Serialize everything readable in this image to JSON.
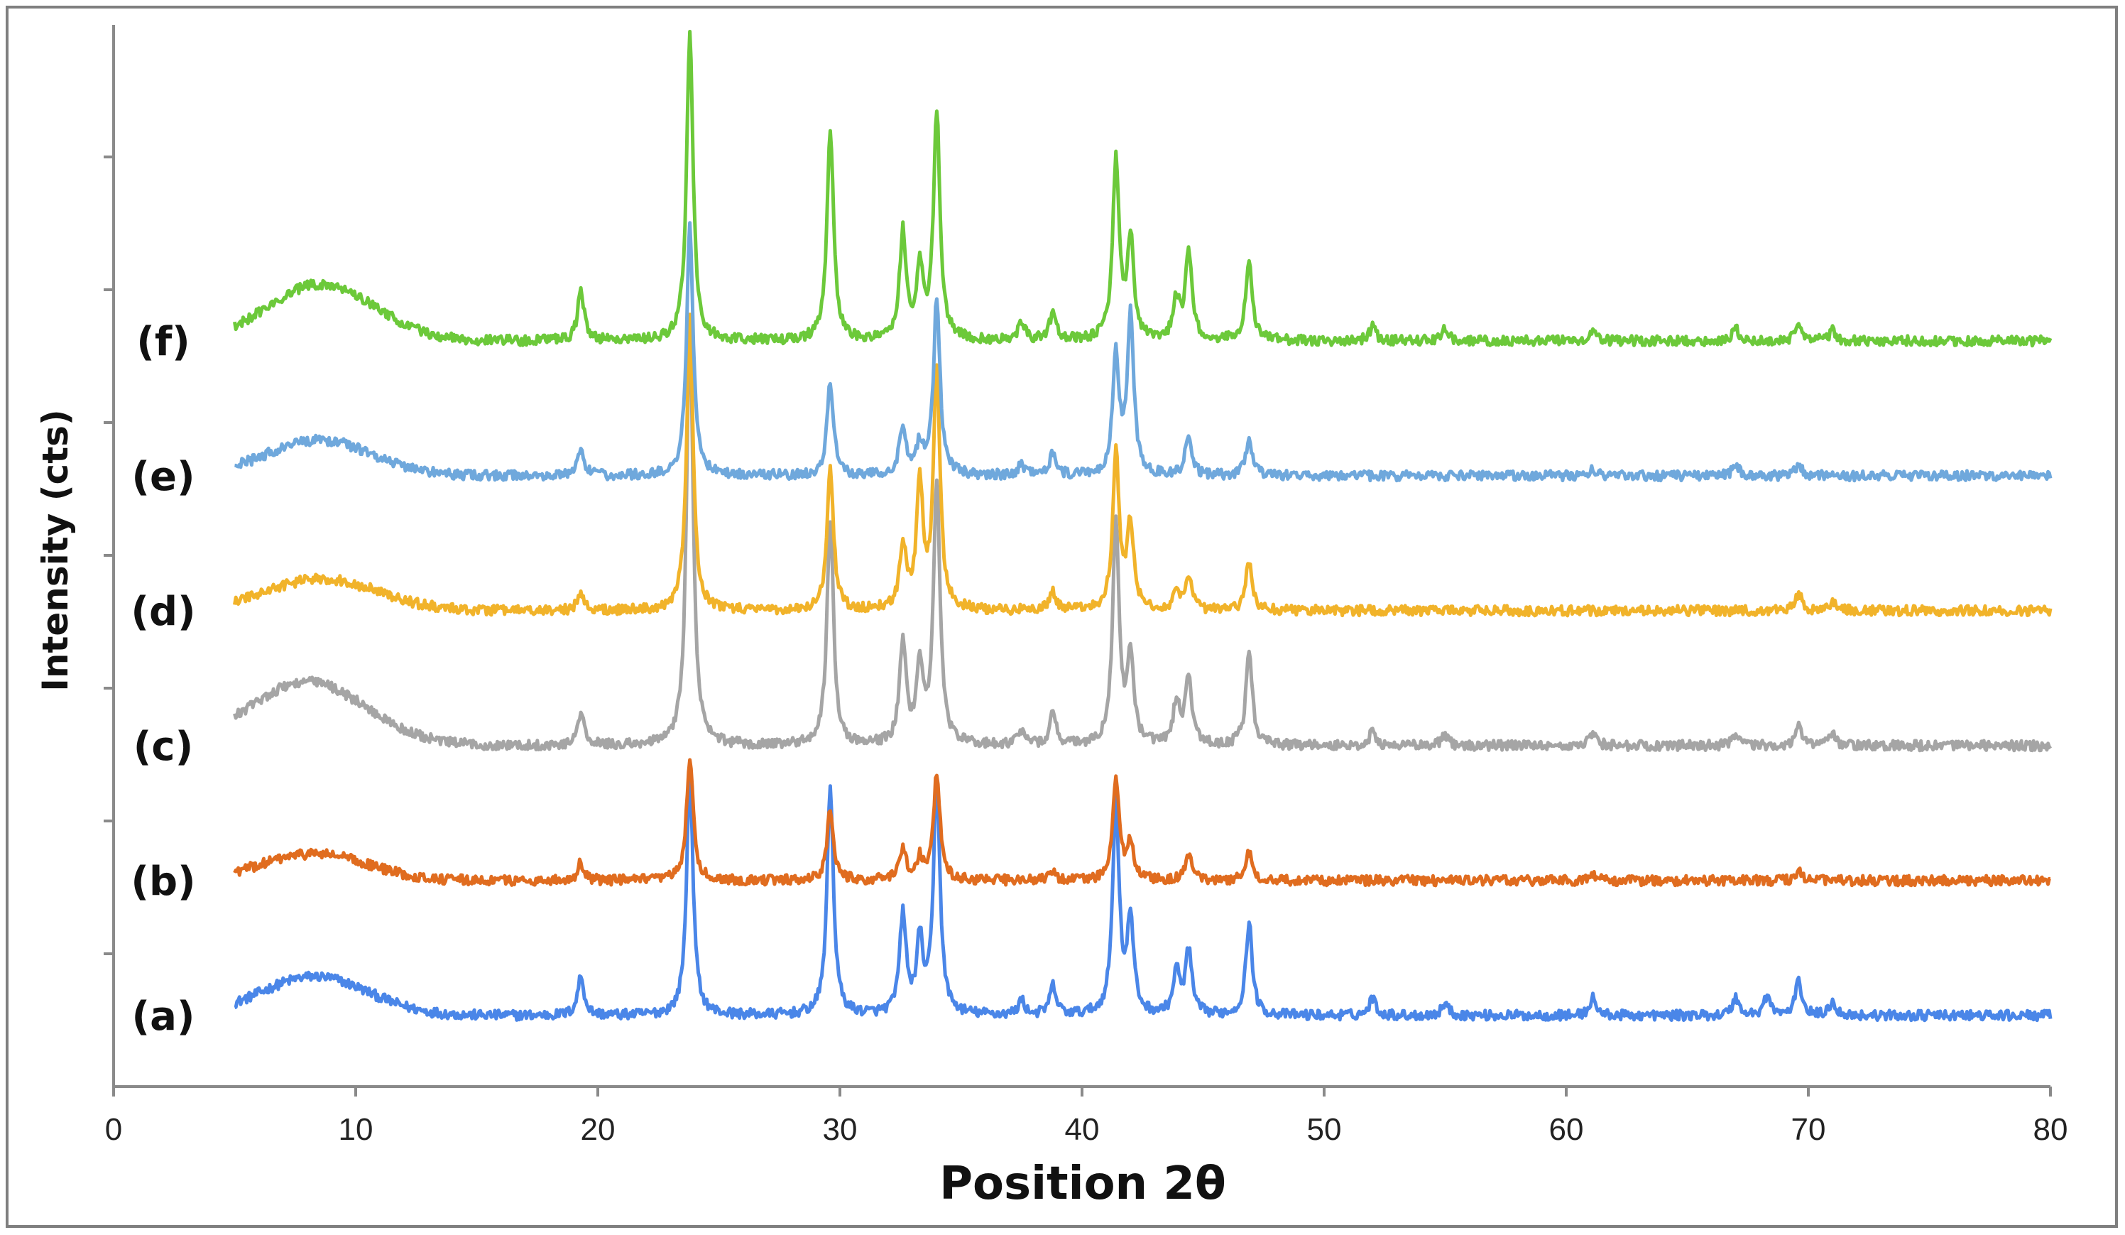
{
  "chart_data": {
    "type": "line",
    "title": "",
    "xlabel": "Position 2θ",
    "ylabel": "Intensity (cts)",
    "xlim": [
      0,
      80
    ],
    "x_ticks": [
      "0",
      "10",
      "20",
      "30",
      "40",
      "50",
      "60",
      "70",
      "80"
    ],
    "y_ticks_labeled": false,
    "grid": false,
    "x_range": [
      5,
      80
    ],
    "series": [
      {
        "name": "(a)",
        "color": "#4a86e8",
        "offset": 0,
        "baseline": 100,
        "hump": {
          "center": 8.3,
          "height": 55,
          "width": 2.2
        },
        "peaks": [
          [
            19.3,
            55
          ],
          [
            23.8,
            340
          ],
          [
            29.6,
            320
          ],
          [
            32.6,
            140
          ],
          [
            33.3,
            100
          ],
          [
            34.0,
            330
          ],
          [
            37.5,
            20
          ],
          [
            38.8,
            40
          ],
          [
            41.4,
            300
          ],
          [
            42.0,
            130
          ],
          [
            43.9,
            60
          ],
          [
            44.4,
            90
          ],
          [
            46.9,
            130
          ],
          [
            52.0,
            25
          ],
          [
            55.0,
            18
          ],
          [
            61.1,
            25
          ],
          [
            67.0,
            25
          ],
          [
            68.3,
            28
          ],
          [
            69.6,
            48
          ],
          [
            71.0,
            20
          ]
        ]
      },
      {
        "name": "(b)",
        "color": "#e06c1f",
        "offset": 190,
        "baseline": 100,
        "hump": {
          "center": 8.3,
          "height": 38,
          "width": 2.2
        },
        "peaks": [
          [
            19.3,
            25
          ],
          [
            23.8,
            175
          ],
          [
            29.6,
            100
          ],
          [
            32.6,
            45
          ],
          [
            33.3,
            30
          ],
          [
            34.0,
            150
          ],
          [
            38.8,
            12
          ],
          [
            41.4,
            140
          ],
          [
            42.0,
            55
          ],
          [
            44.4,
            35
          ],
          [
            46.9,
            40
          ],
          [
            61.1,
            8
          ],
          [
            69.6,
            12
          ]
        ]
      },
      {
        "name": "(c)",
        "color": "#a5a5a5",
        "offset": 380,
        "baseline": 100,
        "hump": {
          "center": 8.0,
          "height": 90,
          "width": 2.4
        },
        "peaks": [
          [
            19.3,
            45
          ],
          [
            23.8,
            600
          ],
          [
            29.6,
            320
          ],
          [
            32.6,
            145
          ],
          [
            33.3,
            110
          ],
          [
            34.0,
            370
          ],
          [
            37.5,
            20
          ],
          [
            38.8,
            45
          ],
          [
            41.4,
            310
          ],
          [
            42.0,
            120
          ],
          [
            43.9,
            60
          ],
          [
            44.4,
            95
          ],
          [
            46.9,
            130
          ],
          [
            52.0,
            20
          ],
          [
            55.0,
            15
          ],
          [
            61.1,
            18
          ],
          [
            67.0,
            15
          ],
          [
            69.6,
            30
          ],
          [
            71.0,
            15
          ]
        ]
      },
      {
        "name": "(d)",
        "color": "#f1b32a",
        "offset": 570,
        "baseline": 100,
        "hump": {
          "center": 8.6,
          "height": 45,
          "width": 2.3
        },
        "peaks": [
          [
            19.3,
            25
          ],
          [
            23.8,
            410
          ],
          [
            29.6,
            200
          ],
          [
            32.6,
            90
          ],
          [
            33.3,
            175
          ],
          [
            34.0,
            340
          ],
          [
            38.8,
            25
          ],
          [
            41.4,
            220
          ],
          [
            42.0,
            120
          ],
          [
            43.9,
            25
          ],
          [
            44.4,
            45
          ],
          [
            46.9,
            70
          ],
          [
            69.6,
            25
          ],
          [
            71.0,
            12
          ]
        ]
      },
      {
        "name": "(e)",
        "color": "#6fa8dc",
        "offset": 760,
        "baseline": 100,
        "hump": {
          "center": 8.5,
          "height": 50,
          "width": 2.2
        },
        "peaks": [
          [
            19.3,
            35
          ],
          [
            23.8,
            350
          ],
          [
            29.6,
            130
          ],
          [
            32.6,
            70
          ],
          [
            33.3,
            40
          ],
          [
            34.0,
            250
          ],
          [
            37.5,
            15
          ],
          [
            38.8,
            30
          ],
          [
            41.4,
            165
          ],
          [
            42.0,
            225
          ],
          [
            44.4,
            55
          ],
          [
            46.9,
            50
          ],
          [
            61.1,
            10
          ],
          [
            67.0,
            15
          ],
          [
            69.6,
            15
          ]
        ]
      },
      {
        "name": "(f)",
        "color": "#6cc93a",
        "offset": 950,
        "baseline": 100,
        "hump": {
          "center": 8.6,
          "height": 80,
          "width": 2.2
        },
        "peaks": [
          [
            19.3,
            70
          ],
          [
            23.8,
            430
          ],
          [
            29.6,
            300
          ],
          [
            32.6,
            150
          ],
          [
            33.3,
            100
          ],
          [
            34.0,
            320
          ],
          [
            37.5,
            25
          ],
          [
            38.8,
            40
          ],
          [
            41.4,
            250
          ],
          [
            42.0,
            140
          ],
          [
            43.9,
            55
          ],
          [
            44.4,
            125
          ],
          [
            46.9,
            115
          ],
          [
            52.0,
            20
          ],
          [
            55.0,
            18
          ],
          [
            61.1,
            15
          ],
          [
            67.0,
            18
          ],
          [
            69.6,
            25
          ],
          [
            71.0,
            15
          ]
        ]
      }
    ]
  }
}
